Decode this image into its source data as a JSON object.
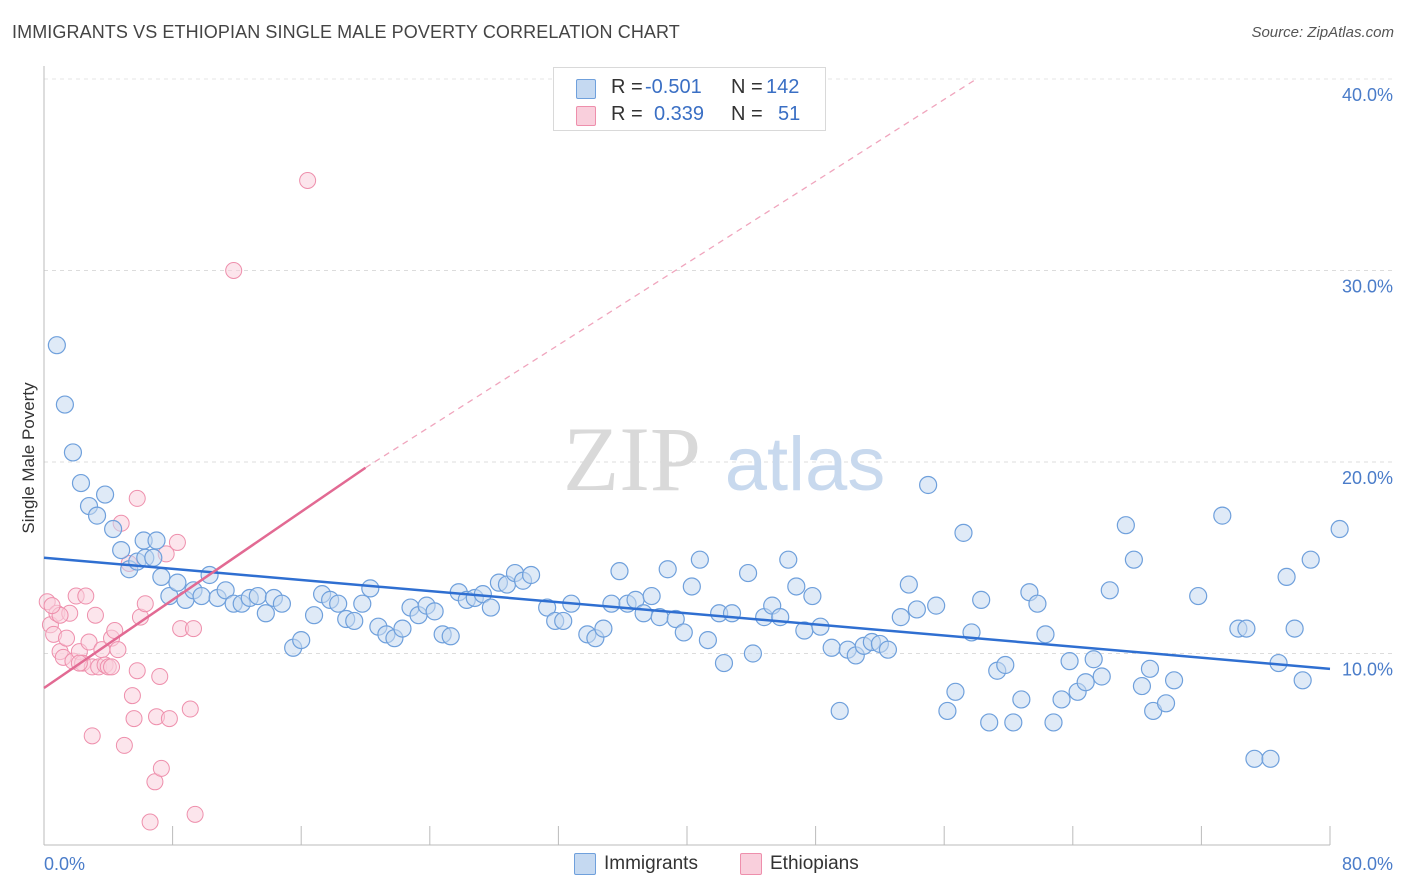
{
  "title": "IMMIGRANTS VS ETHIOPIAN SINGLE MALE POVERTY CORRELATION CHART",
  "source": "Source: ZipAtlas.com",
  "watermark": {
    "zip": "ZIP",
    "atlas": "atlas"
  },
  "colors": {
    "immigrants": "#6fa0dc",
    "immigrants_fill": "#c5d9f1",
    "immigrants_line": "#2f6fd1",
    "ethiopians": "#ee8fac",
    "ethiopians_fill": "#f9cfdc",
    "ethiopians_line": "#e26a93",
    "tick_text": "#4a7cc9"
  },
  "legend": {
    "rows": [
      {
        "r_label": "R =",
        "r_value": "-0.501",
        "n_label": "N =",
        "n_value": "142"
      },
      {
        "r_label": "R =",
        "r_value": "0.339",
        "n_label": "N =",
        "n_value": "51"
      }
    ]
  },
  "bottom_legend": {
    "immigrants": "Immigrants",
    "ethiopians": "Ethiopians"
  },
  "chart_data": {
    "type": "scatter",
    "title": "IMMIGRANTS VS ETHIOPIAN SINGLE MALE POVERTY CORRELATION CHART",
    "xlabel": "",
    "ylabel": "Single Male Poverty",
    "xlim": [
      0,
      80
    ],
    "ylim": [
      0,
      40
    ],
    "x_tick_labels": [
      "0.0%",
      "80.0%"
    ],
    "y_tick_values": [
      10,
      20,
      30,
      40
    ],
    "y_tick_labels": [
      "10.0%",
      "20.0%",
      "30.0%",
      "40.0%"
    ],
    "grid": true,
    "series": [
      {
        "name": "Immigrants",
        "r": -0.501,
        "n": 142,
        "trend": {
          "x": [
            0,
            80
          ],
          "y": [
            15.0,
            9.2
          ],
          "style": "solid"
        },
        "points": [
          [
            0.8,
            26.1
          ],
          [
            1.3,
            23.0
          ],
          [
            1.8,
            20.5
          ],
          [
            2.3,
            18.9
          ],
          [
            2.8,
            17.7
          ],
          [
            3.3,
            17.2
          ],
          [
            3.8,
            18.3
          ],
          [
            4.3,
            16.5
          ],
          [
            4.8,
            15.4
          ],
          [
            5.3,
            14.4
          ],
          [
            5.8,
            14.8
          ],
          [
            6.2,
            15.9
          ],
          [
            6.3,
            15.0
          ],
          [
            6.8,
            15.0
          ],
          [
            7.0,
            15.9
          ],
          [
            7.3,
            14.0
          ],
          [
            7.8,
            13.0
          ],
          [
            8.3,
            13.7
          ],
          [
            8.8,
            12.8
          ],
          [
            9.3,
            13.3
          ],
          [
            9.8,
            13.0
          ],
          [
            10.3,
            14.1
          ],
          [
            10.8,
            12.9
          ],
          [
            11.3,
            13.3
          ],
          [
            11.8,
            12.6
          ],
          [
            12.3,
            12.6
          ],
          [
            12.8,
            12.9
          ],
          [
            13.3,
            13.0
          ],
          [
            13.8,
            12.1
          ],
          [
            14.3,
            12.9
          ],
          [
            14.8,
            12.6
          ],
          [
            15.5,
            10.3
          ],
          [
            16.0,
            10.7
          ],
          [
            16.8,
            12.0
          ],
          [
            17.3,
            13.1
          ],
          [
            17.8,
            12.8
          ],
          [
            18.3,
            12.6
          ],
          [
            18.8,
            11.8
          ],
          [
            19.3,
            11.7
          ],
          [
            19.8,
            12.6
          ],
          [
            20.3,
            13.4
          ],
          [
            20.8,
            11.4
          ],
          [
            21.3,
            11.0
          ],
          [
            21.8,
            10.8
          ],
          [
            22.3,
            11.3
          ],
          [
            22.8,
            12.4
          ],
          [
            23.3,
            12.0
          ],
          [
            23.8,
            12.5
          ],
          [
            24.3,
            12.2
          ],
          [
            24.8,
            11.0
          ],
          [
            25.3,
            10.9
          ],
          [
            25.8,
            13.2
          ],
          [
            26.3,
            12.8
          ],
          [
            26.8,
            12.9
          ],
          [
            27.3,
            13.1
          ],
          [
            27.8,
            12.4
          ],
          [
            28.3,
            13.7
          ],
          [
            28.8,
            13.6
          ],
          [
            29.3,
            14.2
          ],
          [
            29.8,
            13.8
          ],
          [
            30.3,
            14.1
          ],
          [
            31.3,
            12.4
          ],
          [
            31.8,
            11.7
          ],
          [
            32.3,
            11.7
          ],
          [
            32.8,
            12.6
          ],
          [
            33.8,
            11.0
          ],
          [
            34.3,
            10.8
          ],
          [
            34.8,
            11.3
          ],
          [
            35.3,
            12.6
          ],
          [
            35.8,
            14.3
          ],
          [
            36.3,
            12.6
          ],
          [
            36.8,
            12.8
          ],
          [
            37.3,
            12.1
          ],
          [
            37.8,
            13.0
          ],
          [
            38.3,
            11.9
          ],
          [
            38.8,
            14.4
          ],
          [
            39.3,
            11.8
          ],
          [
            39.8,
            11.1
          ],
          [
            40.3,
            13.5
          ],
          [
            40.8,
            14.9
          ],
          [
            41.3,
            10.7
          ],
          [
            42.0,
            12.1
          ],
          [
            42.3,
            9.5
          ],
          [
            42.8,
            12.1
          ],
          [
            43.8,
            14.2
          ],
          [
            44.1,
            10.0
          ],
          [
            44.8,
            11.9
          ],
          [
            45.3,
            12.5
          ],
          [
            45.8,
            11.9
          ],
          [
            46.3,
            14.9
          ],
          [
            46.8,
            13.5
          ],
          [
            47.3,
            11.2
          ],
          [
            47.8,
            13.0
          ],
          [
            48.3,
            11.4
          ],
          [
            49.0,
            10.3
          ],
          [
            49.5,
            7.0
          ],
          [
            50.0,
            10.2
          ],
          [
            50.5,
            9.9
          ],
          [
            51.0,
            10.4
          ],
          [
            51.5,
            10.6
          ],
          [
            52.0,
            10.5
          ],
          [
            52.5,
            10.2
          ],
          [
            53.3,
            11.9
          ],
          [
            53.8,
            13.6
          ],
          [
            54.3,
            12.3
          ],
          [
            55.0,
            18.8
          ],
          [
            55.5,
            12.5
          ],
          [
            56.2,
            7.0
          ],
          [
            56.7,
            8.0
          ],
          [
            57.2,
            16.3
          ],
          [
            57.7,
            11.1
          ],
          [
            58.3,
            12.8
          ],
          [
            58.8,
            6.4
          ],
          [
            59.3,
            9.1
          ],
          [
            59.8,
            9.4
          ],
          [
            60.3,
            6.4
          ],
          [
            60.8,
            7.6
          ],
          [
            61.3,
            13.2
          ],
          [
            61.8,
            12.6
          ],
          [
            62.3,
            11.0
          ],
          [
            62.8,
            6.4
          ],
          [
            63.3,
            7.6
          ],
          [
            63.8,
            9.6
          ],
          [
            64.3,
            8.0
          ],
          [
            64.8,
            8.5
          ],
          [
            65.3,
            9.7
          ],
          [
            65.8,
            8.8
          ],
          [
            66.3,
            13.3
          ],
          [
            67.3,
            16.7
          ],
          [
            67.8,
            14.9
          ],
          [
            68.3,
            8.3
          ],
          [
            68.8,
            9.2
          ],
          [
            69.0,
            7.0
          ],
          [
            69.8,
            7.4
          ],
          [
            70.3,
            8.6
          ],
          [
            71.8,
            13.0
          ],
          [
            73.3,
            17.2
          ],
          [
            74.3,
            11.3
          ],
          [
            74.8,
            11.3
          ],
          [
            75.3,
            4.5
          ],
          [
            76.3,
            4.5
          ],
          [
            76.8,
            9.5
          ],
          [
            77.3,
            14.0
          ],
          [
            77.8,
            11.3
          ],
          [
            78.3,
            8.6
          ],
          [
            78.8,
            14.9
          ],
          [
            80.6,
            16.5
          ]
        ]
      },
      {
        "name": "Ethiopians",
        "r": 0.339,
        "n": 51,
        "trend": {
          "x": [
            0,
            20
          ],
          "y": [
            8.2,
            19.7
          ],
          "style": "solid",
          "extension": {
            "x": [
              20,
              58
            ],
            "y": [
              19.7,
              40.0
            ],
            "style": "dashed"
          }
        },
        "points": [
          [
            0.2,
            12.7
          ],
          [
            0.4,
            11.5
          ],
          [
            0.6,
            11.0
          ],
          [
            0.8,
            12.1
          ],
          [
            1.0,
            10.1
          ],
          [
            1.2,
            9.8
          ],
          [
            1.4,
            10.8
          ],
          [
            1.6,
            12.1
          ],
          [
            1.8,
            9.6
          ],
          [
            2.0,
            13.0
          ],
          [
            2.2,
            10.1
          ],
          [
            2.4,
            9.5
          ],
          [
            2.6,
            13.0
          ],
          [
            2.8,
            10.6
          ],
          [
            3.0,
            9.3
          ],
          [
            3.2,
            12.0
          ],
          [
            3.4,
            9.3
          ],
          [
            3.6,
            10.2
          ],
          [
            3.8,
            9.4
          ],
          [
            4.0,
            9.3
          ],
          [
            4.2,
            10.8
          ],
          [
            4.4,
            11.2
          ],
          [
            4.6,
            10.2
          ],
          [
            4.8,
            16.8
          ],
          [
            5.0,
            5.2
          ],
          [
            5.3,
            14.7
          ],
          [
            5.5,
            7.8
          ],
          [
            5.6,
            6.6
          ],
          [
            5.8,
            9.1
          ],
          [
            5.8,
            18.1
          ],
          [
            6.0,
            11.9
          ],
          [
            6.3,
            12.6
          ],
          [
            6.6,
            1.2
          ],
          [
            6.9,
            3.3
          ],
          [
            7.0,
            6.7
          ],
          [
            7.2,
            8.8
          ],
          [
            7.3,
            4.0
          ],
          [
            7.6,
            15.2
          ],
          [
            7.8,
            6.6
          ],
          [
            8.3,
            15.8
          ],
          [
            8.5,
            11.3
          ],
          [
            9.1,
            7.1
          ],
          [
            9.3,
            11.3
          ],
          [
            9.4,
            1.6
          ],
          [
            11.8,
            30.0
          ],
          [
            16.4,
            34.7
          ],
          [
            4.2,
            9.3
          ],
          [
            3.0,
            5.7
          ],
          [
            1.0,
            12.0
          ],
          [
            2.2,
            9.5
          ],
          [
            0.5,
            12.5
          ]
        ]
      }
    ]
  }
}
